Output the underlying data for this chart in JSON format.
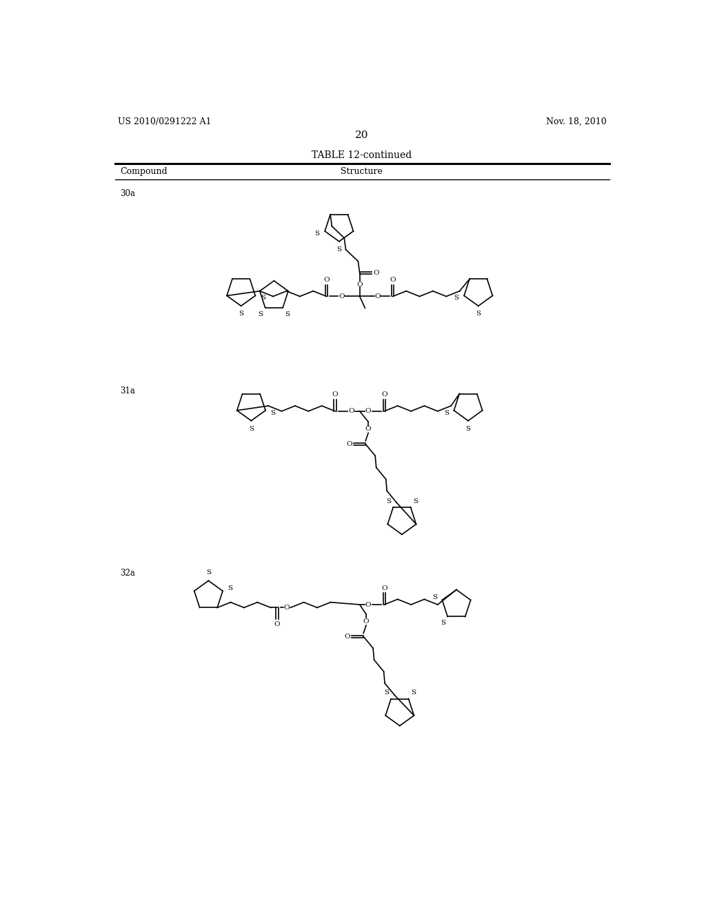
{
  "background_color": "#ffffff",
  "header_left": "US 2010/0291222 A1",
  "header_right": "Nov. 18, 2010",
  "page_number": "20",
  "table_title": "TABLE 12-continued",
  "col1_header": "Compound",
  "col2_header": "Structure",
  "line_color": "#000000",
  "text_color": "#000000"
}
